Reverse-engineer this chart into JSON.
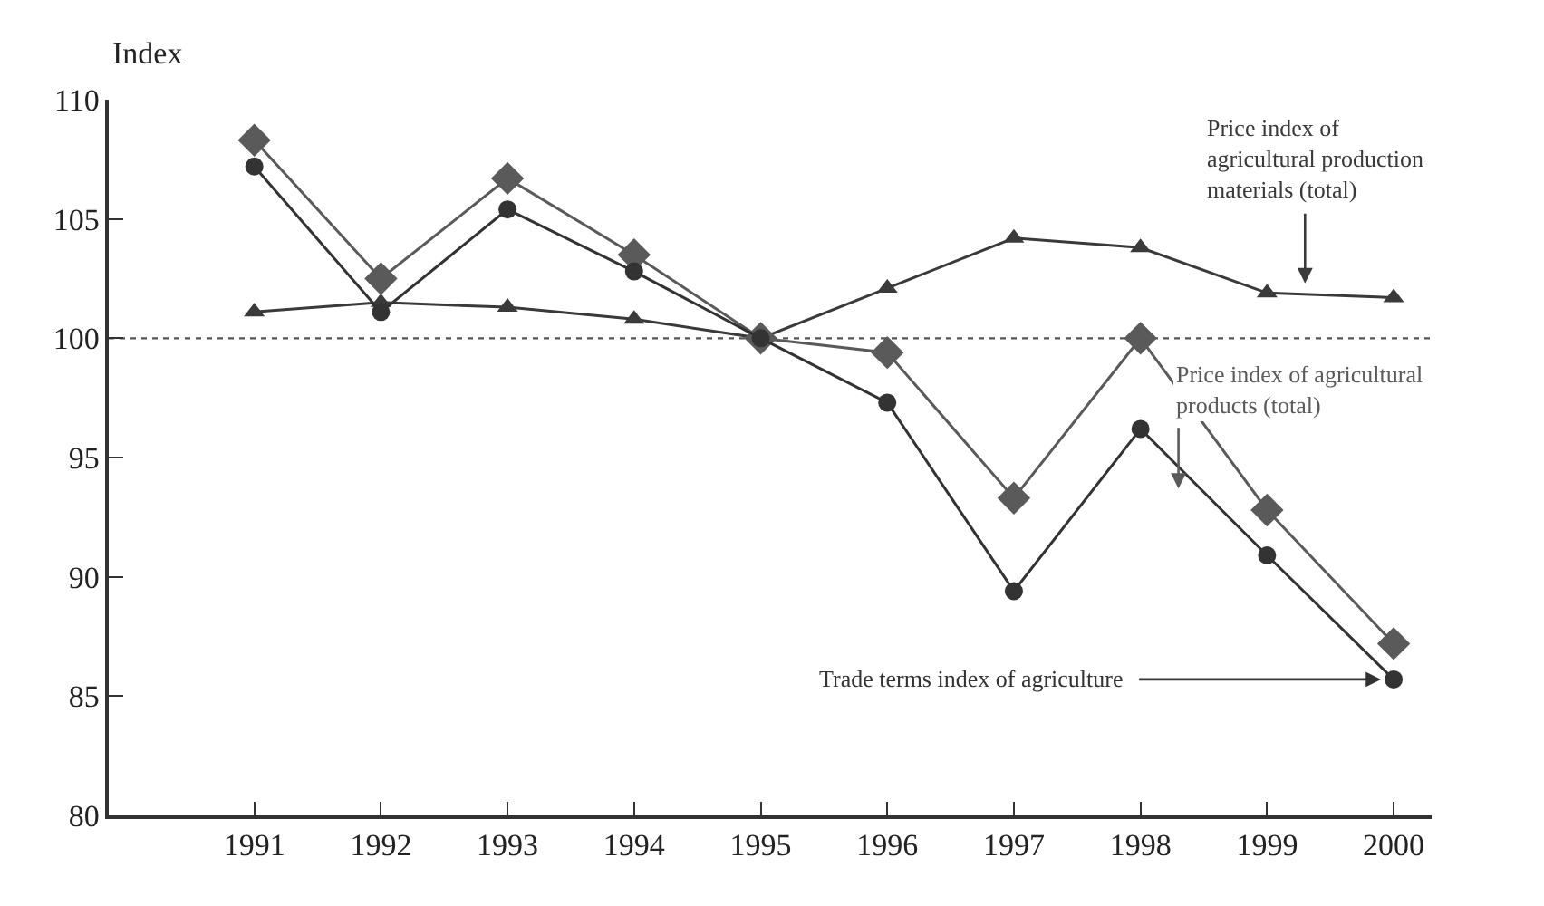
{
  "chart_data": {
    "type": "line",
    "ylabel": "Index",
    "x": [
      1991,
      1992,
      1993,
      1994,
      1995,
      1996,
      1997,
      1998,
      1999,
      2000
    ],
    "series": [
      {
        "name": "Price index of agricultural production materials (total)",
        "color": "#3a3a3a",
        "marker": "triangle",
        "values": [
          101.1,
          101.5,
          101.3,
          100.8,
          100.0,
          102.1,
          104.2,
          103.8,
          101.9,
          101.7
        ]
      },
      {
        "name": "Price index of agricultural products (total)",
        "color": "#5a5a5a",
        "marker": "diamond",
        "values": [
          108.3,
          102.5,
          106.7,
          103.5,
          100.0,
          99.4,
          93.3,
          100.0,
          92.8,
          87.2
        ]
      },
      {
        "name": "Trade terms index of agriculture",
        "color": "#333333",
        "marker": "circle",
        "values": [
          107.2,
          101.1,
          105.4,
          102.8,
          100.0,
          97.3,
          89.4,
          96.2,
          90.9,
          85.7
        ]
      }
    ],
    "xlim": [
      1989.85,
      2000.3
    ],
    "xticks": [
      1991,
      1992,
      1993,
      1994,
      1995,
      1996,
      1997,
      1998,
      1999,
      2000
    ],
    "ylim": [
      80,
      110
    ],
    "yticks": [
      80,
      85,
      90,
      95,
      100,
      105,
      110
    ],
    "ref_lines": [
      {
        "axis": "y",
        "value": 100,
        "line_style": "dotted",
        "color": "#555555"
      }
    ],
    "grid": false,
    "legend": false,
    "line_style": "solid"
  }
}
